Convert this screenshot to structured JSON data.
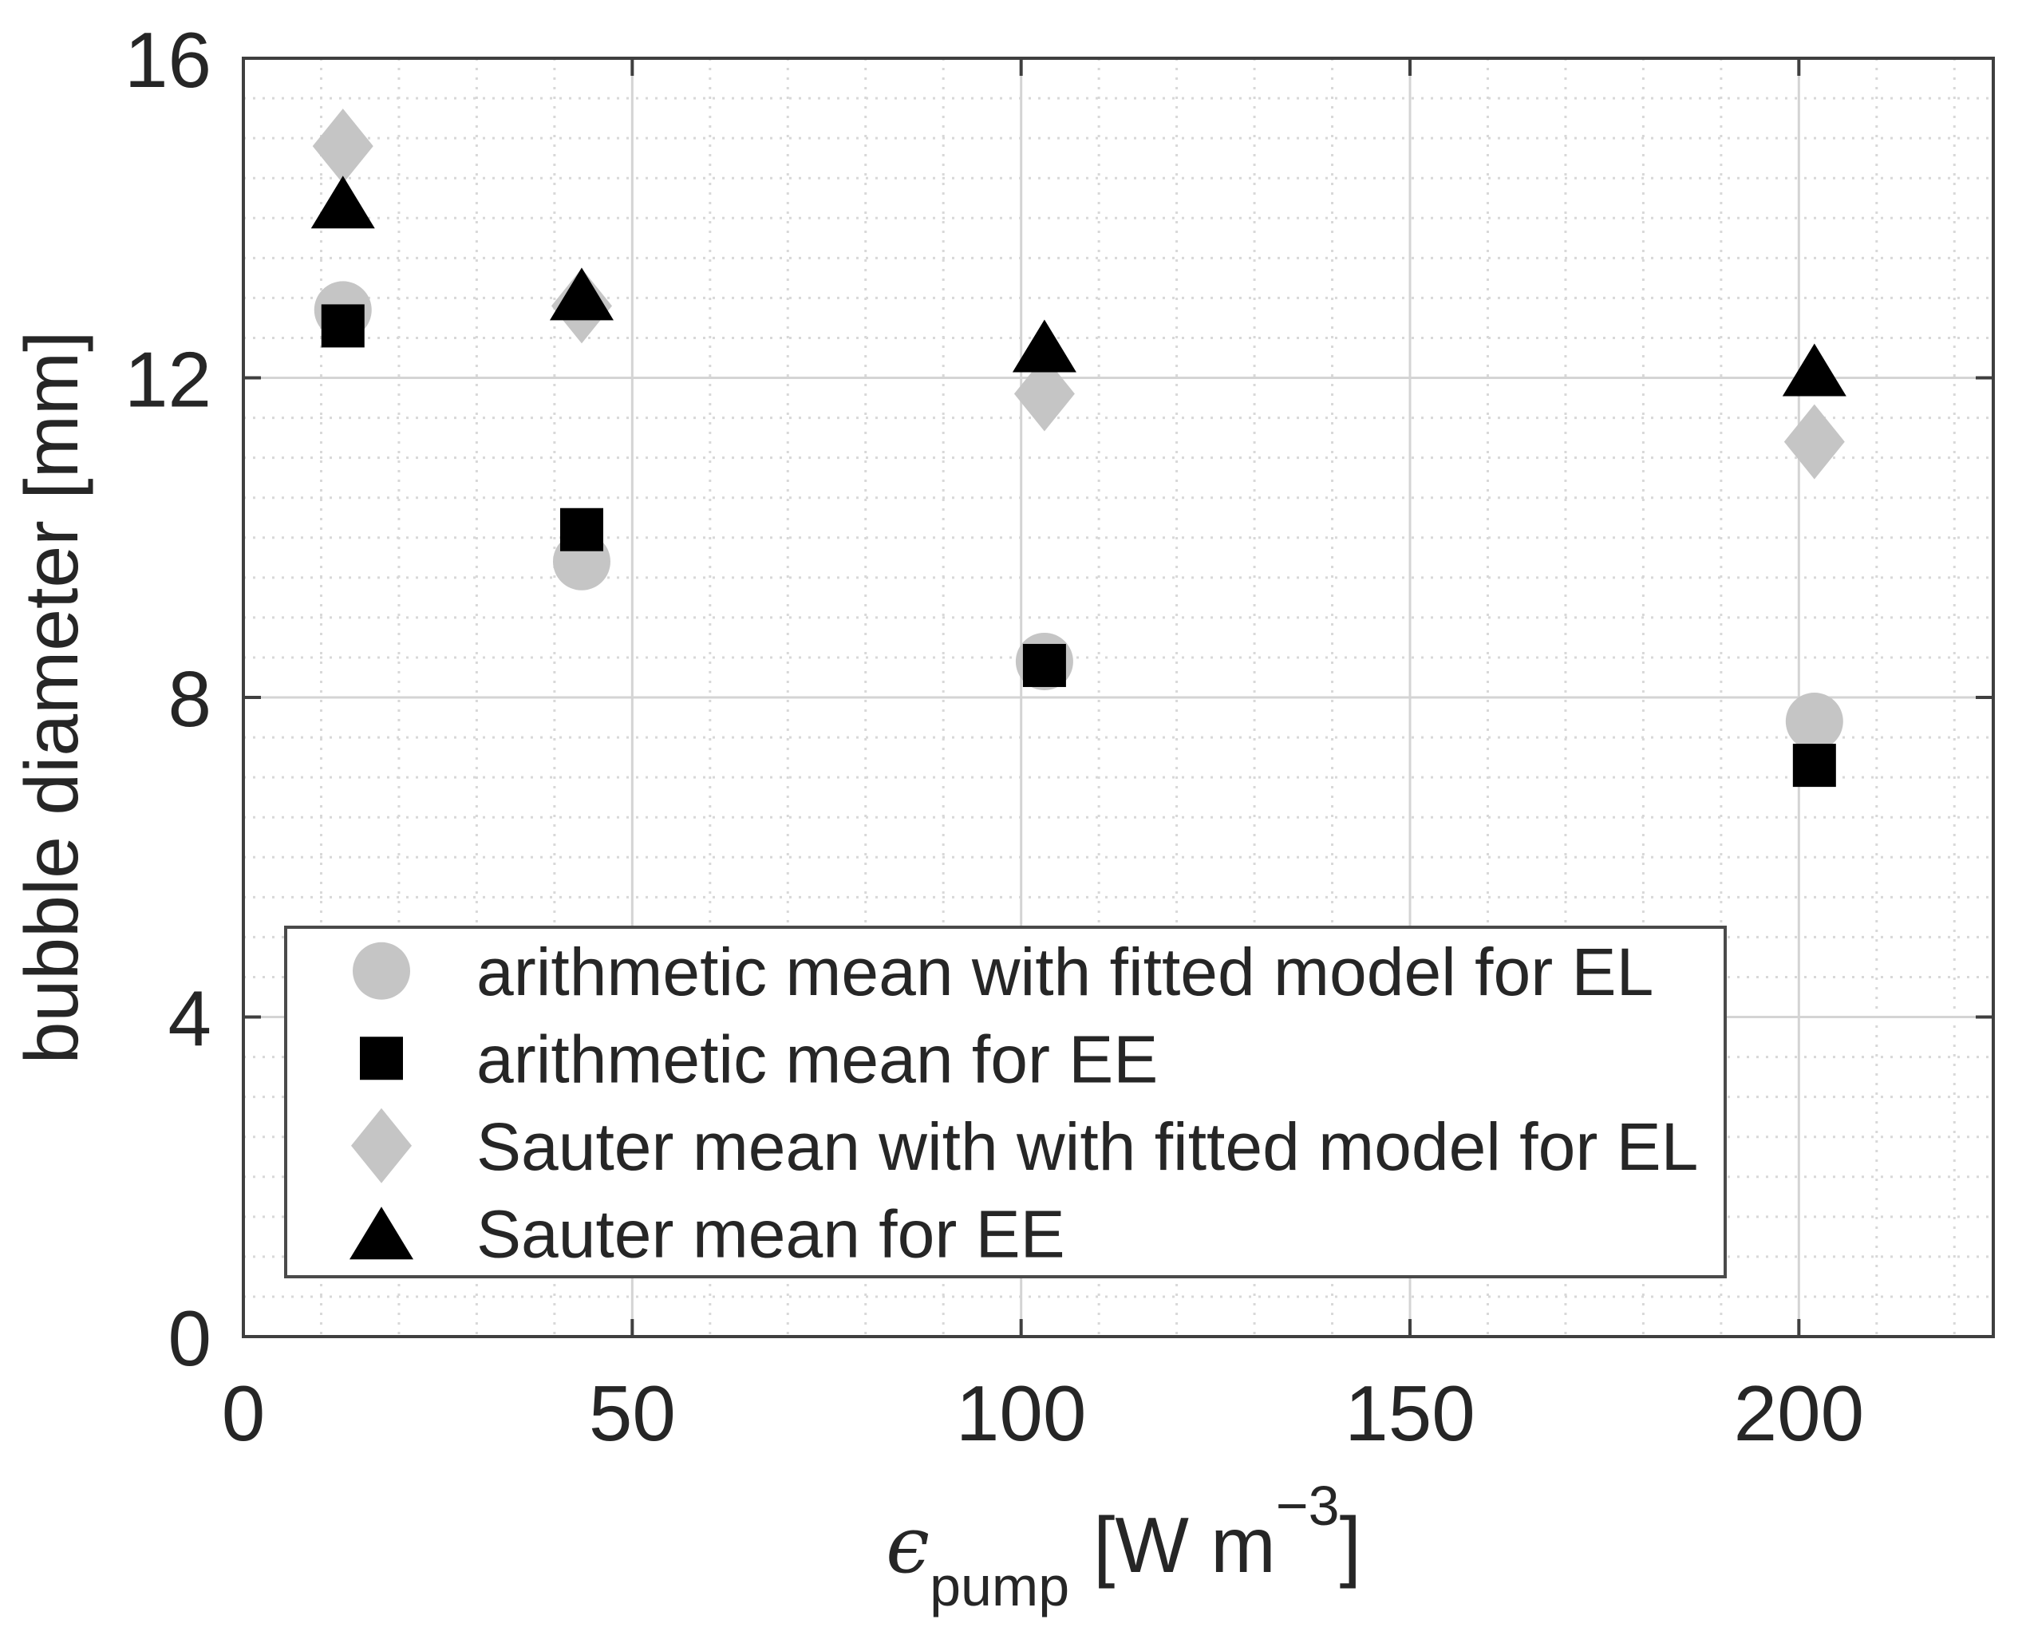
{
  "figure": {
    "description": "scatter plot of mean bubble diameter versus pump power input"
  },
  "chart_data": {
    "type": "scatter",
    "title": "",
    "ylabel": "bubble diameter [mm]",
    "xlabel": "ϵ_pump [W m⁻³]",
    "xlabel_parts": {
      "symbol": "ϵ",
      "subscript": "pump",
      "unit_open": "[W m",
      "exponent": "−3",
      "unit_close": "]"
    },
    "xlim": [
      0,
      225
    ],
    "ylim": [
      0,
      16
    ],
    "xticks": [
      0,
      50,
      100,
      150,
      200
    ],
    "yticks": [
      0,
      4,
      8,
      12,
      16
    ],
    "x_minor_step": 10,
    "y_minor_step": 0.5,
    "grid": "major solid, minor dotted",
    "legend_position": "inside bottom-left",
    "series": [
      {
        "name": "arithmetic mean with fitted model for EL",
        "marker": "circle",
        "color": "#c5c5c5",
        "points": [
          [
            12.8,
            12.85
          ],
          [
            43.5,
            9.7
          ],
          [
            103,
            8.45
          ],
          [
            202,
            7.7
          ]
        ]
      },
      {
        "name": "arithmetic mean for EE",
        "marker": "square",
        "color": "#000000",
        "points": [
          [
            12.8,
            12.65
          ],
          [
            43.5,
            10.1
          ],
          [
            103,
            8.4
          ],
          [
            202,
            7.15
          ]
        ]
      },
      {
        "name": "Sauter mean with with fitted model for EL",
        "marker": "diamond",
        "color": "#c5c5c5",
        "points": [
          [
            12.8,
            14.9
          ],
          [
            43.5,
            12.9
          ],
          [
            103,
            11.8
          ],
          [
            202,
            11.2
          ]
        ]
      },
      {
        "name": "Sauter mean for EE",
        "marker": "triangle",
        "color": "#000000",
        "points": [
          [
            12.8,
            14.2
          ],
          [
            43.5,
            13.05
          ],
          [
            103,
            12.4
          ],
          [
            202,
            12.1
          ]
        ]
      }
    ]
  },
  "style": {
    "background": "#ffffff",
    "frame_color": "#3f3f3f",
    "grid_major_color": "#d4d4d4",
    "grid_minor_color": "#d8d8d8",
    "text_color": "#262626",
    "marker_gray": "#c5c5c5",
    "marker_black": "#000000"
  }
}
